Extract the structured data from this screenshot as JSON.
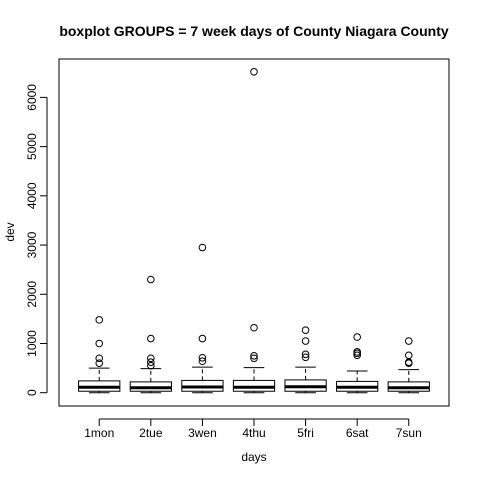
{
  "chart_data": {
    "type": "boxplot",
    "title": "boxplot GROUPS = 7 week days of County Niagara County",
    "xlabel": "days",
    "ylabel": "dev",
    "ylim": [
      -270,
      6780
    ],
    "yticks": [
      0,
      1000,
      2000,
      3000,
      4000,
      5000,
      6000
    ],
    "ytick_labels": [
      "0",
      "1000",
      "2000",
      "3000",
      "4000",
      "5000",
      "6000"
    ],
    "grid": false,
    "categories": [
      "1mon",
      "2tue",
      "3wen",
      "4thu",
      "5fri",
      "6sat",
      "7sun"
    ],
    "boxes": [
      {
        "category": "1mon",
        "whisker_low": 0,
        "q1": 30,
        "median": 110,
        "q3": 240,
        "whisker_high": 500,
        "outliers": [
          600,
          700,
          1000,
          1480
        ]
      },
      {
        "category": "2tue",
        "whisker_low": 0,
        "q1": 30,
        "median": 100,
        "q3": 220,
        "whisker_high": 490,
        "outliers": [
          550,
          620,
          700,
          1100,
          2300
        ]
      },
      {
        "category": "3wen",
        "whisker_low": 0,
        "q1": 30,
        "median": 115,
        "q3": 250,
        "whisker_high": 520,
        "outliers": [
          640,
          710,
          1100,
          2950
        ]
      },
      {
        "category": "4thu",
        "whisker_low": 0,
        "q1": 30,
        "median": 110,
        "q3": 250,
        "whisker_high": 510,
        "outliers": [
          700,
          750,
          1320,
          6520
        ]
      },
      {
        "category": "5fri",
        "whisker_low": 0,
        "q1": 30,
        "median": 120,
        "q3": 260,
        "whisker_high": 520,
        "outliers": [
          720,
          780,
          1050,
          1270
        ]
      },
      {
        "category": "6sat",
        "whisker_low": 0,
        "q1": 30,
        "median": 110,
        "q3": 230,
        "whisker_high": 440,
        "outliers": [
          760,
          800,
          830,
          1130
        ]
      },
      {
        "category": "7sun",
        "whisker_low": 0,
        "q1": 30,
        "median": 100,
        "q3": 220,
        "whisker_high": 470,
        "outliers": [
          600,
          620,
          760,
          1050
        ]
      }
    ]
  }
}
